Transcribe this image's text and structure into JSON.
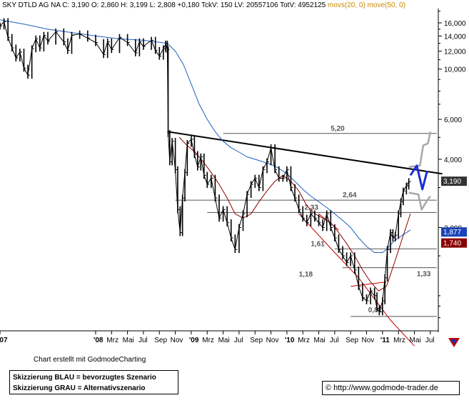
{
  "header": {
    "prefix": "SKY DTLD AG NA",
    "quote_parts": [
      {
        "label": "C:",
        "value": "3,190"
      },
      {
        "label": "O:",
        "value": "2,860"
      },
      {
        "label": "H:",
        "value": "3,199"
      },
      {
        "label": "L:",
        "value": "2,808"
      },
      {
        "label": "",
        "value": "+0,180"
      },
      {
        "label": "TckV:",
        "value": "150"
      },
      {
        "label": "LV:",
        "value": "20557106"
      },
      {
        "label": "TotV:",
        "value": "4952125"
      }
    ],
    "ma_labels": [
      "movs(20, 0)",
      "move(50, 0)"
    ]
  },
  "colors": {
    "ma_short": "#8b0000",
    "ma_long": "#1e5fbf",
    "scenario_blue": "#1a2fd6",
    "scenario_grey": "#a8a8a8",
    "price_badge": "#333333",
    "badge_blue": "#1a43b8",
    "badge_red": "#8b0000",
    "header_orange": "#cc8800"
  },
  "chart_data": {
    "type": "line",
    "y_scale": "log",
    "ylim": [
      0.7,
      18.5
    ],
    "y_ticks": [
      {
        "value": 16,
        "label": "16,000"
      },
      {
        "value": 14,
        "label": "14,000"
      },
      {
        "value": 12,
        "label": "12,000"
      },
      {
        "value": 10,
        "label": "10,000"
      },
      {
        "value": 6,
        "label": "6,000"
      },
      {
        "value": 4,
        "label": "4,000"
      },
      {
        "value": 2,
        "label": "2,000"
      }
    ],
    "x_ticks": [
      "'07",
      "'08",
      "Mrz",
      "Mai",
      "Jul",
      "Sep",
      "Nov",
      "'09",
      "Mrz",
      "Mai",
      "Jul",
      "Sep",
      "Nov",
      "'10",
      "Mrz",
      "Mai",
      "Jul",
      "Sep",
      "Nov",
      "'11",
      "Mrz",
      "Mai",
      "Jul"
    ],
    "x_tick_months": [
      0,
      12,
      14,
      16,
      18,
      20,
      22,
      24,
      26,
      28,
      30,
      32,
      34,
      36,
      38,
      40,
      42,
      44,
      46,
      48,
      50,
      52,
      54
    ],
    "x_range_months": [
      0,
      55
    ],
    "price": [
      [
        0,
        15.5
      ],
      [
        0.5,
        16.2
      ],
      [
        1,
        13.8
      ],
      [
        1.5,
        12.4
      ],
      [
        2,
        11.2
      ],
      [
        2.5,
        11.9
      ],
      [
        3,
        10.1
      ],
      [
        3.5,
        9.4
      ],
      [
        4,
        12.3
      ],
      [
        4.5,
        13.6
      ],
      [
        5,
        12.4
      ],
      [
        5.5,
        14.1
      ],
      [
        6,
        13.3
      ],
      [
        7,
        14.6
      ],
      [
        8,
        13.2
      ],
      [
        8.5,
        12.1
      ],
      [
        9,
        14.1
      ],
      [
        10,
        14.3
      ],
      [
        11,
        13.7
      ],
      [
        12,
        13.1
      ],
      [
        13,
        11.6
      ],
      [
        13.5,
        13.2
      ],
      [
        14,
        12.2
      ],
      [
        15,
        13.8
      ],
      [
        16,
        13.1
      ],
      [
        17,
        11.8
      ],
      [
        17.5,
        13.2
      ],
      [
        18,
        12.6
      ],
      [
        19,
        13.4
      ],
      [
        19.5,
        12.1
      ],
      [
        20,
        11.4
      ],
      [
        20.5,
        12.3
      ],
      [
        20.8,
        12.9
      ],
      [
        21,
        12.2
      ],
      [
        21.1,
        5.2
      ],
      [
        21.3,
        3.9
      ],
      [
        21.6,
        4.8
      ],
      [
        22,
        3.6
      ],
      [
        22.3,
        2.4
      ],
      [
        22.6,
        1.9
      ],
      [
        22.9,
        2.7
      ],
      [
        23.2,
        3.5
      ],
      [
        23.5,
        4.7
      ],
      [
        24,
        4.9
      ],
      [
        24.4,
        4.2
      ],
      [
        24.8,
        3.7
      ],
      [
        25.2,
        4.1
      ],
      [
        25.6,
        3.4
      ],
      [
        26,
        3.1
      ],
      [
        26.5,
        3.3
      ],
      [
        27,
        2.7
      ],
      [
        27.5,
        2.2
      ],
      [
        28,
        2.4
      ],
      [
        28.5,
        2.1
      ],
      [
        29,
        1.8
      ],
      [
        29.5,
        1.6
      ],
      [
        30,
        2.0
      ],
      [
        30.5,
        2.3
      ],
      [
        31,
        2.8
      ],
      [
        31.5,
        3.1
      ],
      [
        32,
        3.3
      ],
      [
        32.5,
        3.0
      ],
      [
        33,
        3.6
      ],
      [
        33.5,
        3.9
      ],
      [
        34,
        4.5
      ],
      [
        34.5,
        3.6
      ],
      [
        35,
        3.3
      ],
      [
        35.5,
        3.3
      ],
      [
        36,
        3.6
      ],
      [
        36.5,
        3.0
      ],
      [
        37,
        2.7
      ],
      [
        37.5,
        2.4
      ],
      [
        38,
        2.2
      ],
      [
        38.5,
        2.1
      ],
      [
        39,
        2.3
      ],
      [
        39.5,
        2.2
      ],
      [
        40,
        2.1
      ],
      [
        40.5,
        2.0
      ],
      [
        41,
        2.3
      ],
      [
        41.5,
        2.0
      ],
      [
        42,
        1.8
      ],
      [
        42.5,
        1.6
      ],
      [
        43,
        1.5
      ],
      [
        43.5,
        1.4
      ],
      [
        44,
        1.5
      ],
      [
        44.5,
        1.3
      ],
      [
        45,
        1.1
      ],
      [
        45.5,
        0.98
      ],
      [
        46,
        0.95
      ],
      [
        46.5,
        1.05
      ],
      [
        47,
        1.0
      ],
      [
        47.3,
        0.88
      ],
      [
        47.6,
        0.85
      ],
      [
        48,
        0.95
      ],
      [
        48.3,
        1.2
      ],
      [
        48.6,
        1.6
      ],
      [
        49,
        1.9
      ],
      [
        49.3,
        1.8
      ],
      [
        49.6,
        1.85
      ],
      [
        50,
        2.3
      ],
      [
        50.3,
        2.6
      ],
      [
        50.6,
        2.9
      ],
      [
        51,
        3.05
      ],
      [
        51.3,
        3.19
      ]
    ],
    "ma20": [
      [
        22.5,
        5.0
      ],
      [
        23.5,
        4.6
      ],
      [
        24.5,
        4.3
      ],
      [
        25.5,
        3.9
      ],
      [
        26.5,
        3.5
      ],
      [
        27.5,
        3.1
      ],
      [
        28.5,
        2.7
      ],
      [
        29.5,
        2.3
      ],
      [
        30.5,
        2.2
      ],
      [
        31.5,
        2.3
      ],
      [
        32.5,
        2.6
      ],
      [
        33.5,
        2.9
      ],
      [
        34.5,
        3.2
      ],
      [
        35.5,
        3.4
      ],
      [
        36.5,
        3.2
      ],
      [
        37.5,
        2.9
      ],
      [
        38.5,
        2.5
      ],
      [
        39.5,
        2.3
      ],
      [
        40.5,
        2.2
      ],
      [
        41.5,
        2.1
      ],
      [
        42.5,
        1.9
      ],
      [
        43.5,
        1.7
      ],
      [
        44.5,
        1.5
      ],
      [
        45.5,
        1.3
      ],
      [
        46.5,
        1.15
      ],
      [
        47.5,
        1.05
      ],
      [
        48.5,
        1.1
      ],
      [
        49.5,
        1.4
      ],
      [
        50.5,
        1.8
      ],
      [
        51.5,
        2.3
      ]
    ],
    "ma50": [
      [
        0,
        16.5
      ],
      [
        3,
        15.8
      ],
      [
        6,
        15.0
      ],
      [
        9,
        14.5
      ],
      [
        12,
        14.0
      ],
      [
        15,
        13.6
      ],
      [
        18,
        13.4
      ],
      [
        21,
        13.0
      ],
      [
        22,
        12.0
      ],
      [
        23,
        10.5
      ],
      [
        24,
        8.6
      ],
      [
        25,
        7.0
      ],
      [
        26,
        6.0
      ],
      [
        27,
        5.3
      ],
      [
        28,
        4.8
      ],
      [
        29,
        4.5
      ],
      [
        30,
        4.3
      ],
      [
        31,
        4.1
      ],
      [
        32,
        4.0
      ],
      [
        33,
        3.9
      ],
      [
        34,
        3.8
      ],
      [
        35,
        3.65
      ],
      [
        36,
        3.45
      ],
      [
        37,
        3.2
      ],
      [
        38,
        2.95
      ],
      [
        39,
        2.75
      ],
      [
        40,
        2.6
      ],
      [
        41,
        2.45
      ],
      [
        42,
        2.3
      ],
      [
        43,
        2.15
      ],
      [
        44,
        2.0
      ],
      [
        45,
        1.8
      ],
      [
        46,
        1.65
      ],
      [
        47,
        1.55
      ],
      [
        48,
        1.55
      ],
      [
        48.5,
        1.6
      ],
      [
        49.5,
        1.75
      ],
      [
        50.5,
        1.85
      ],
      [
        51.5,
        1.95
      ]
    ],
    "resistance_line": [
      [
        21,
        5.3
      ],
      [
        55.5,
        3.45
      ]
    ],
    "support_levels": [
      {
        "value": 5.2,
        "label": "5,20",
        "label_month": 41.5,
        "from_month": 28
      },
      {
        "value": 2.64,
        "label": "2,64",
        "label_month": 43.0,
        "from_month": 22
      },
      {
        "value": 2.33,
        "label": "2,33",
        "label_month": 38.2,
        "from_month": 26
      },
      {
        "value": 1.61,
        "label": "1,61",
        "label_month": 39.0,
        "from_month": 42
      },
      {
        "value": 1.33,
        "label": "1,33",
        "label_month": 52.3,
        "from_month": 43
      },
      {
        "value": 1.18,
        "label": "1,18",
        "label_month": 37.5,
        "from_month": 0,
        "no_line": true
      },
      {
        "value": 0.81,
        "label": "0,81",
        "label_month": 46.2,
        "from_month": 44
      }
    ],
    "price_badges": [
      {
        "value": 3.19,
        "label": "3,190",
        "kind": "price"
      },
      {
        "value": 1.877,
        "label": "1,877",
        "kind": "blue"
      },
      {
        "value": 1.74,
        "label": "1,740",
        "kind": "red"
      }
    ],
    "scenario_blue": [
      [
        51.5,
        3.4
      ],
      [
        52.3,
        3.75
      ],
      [
        53.0,
        2.95
      ],
      [
        53.6,
        3.55
      ]
    ],
    "scenario_grey_up": [
      [
        51.3,
        3.7
      ],
      [
        52.7,
        3.75
      ],
      [
        53.1,
        4.6
      ],
      [
        53.7,
        4.7
      ],
      [
        54.0,
        5.3
      ]
    ],
    "scenario_grey_down": [
      [
        51.3,
        2.85
      ],
      [
        52.5,
        2.8
      ],
      [
        52.9,
        2.4
      ],
      [
        53.5,
        2.6
      ],
      [
        54.0,
        2.75
      ]
    ],
    "trendline_red": [
      [
        40,
        2.3
      ],
      [
        42.5,
        1.95
      ]
    ],
    "trendline_red2": [
      [
        44,
        1.1
      ],
      [
        48.5,
        1.15
      ]
    ],
    "trendline_down": [
      [
        37.5,
        2.3
      ],
      [
        42,
        1.55
      ],
      [
        45,
        1.2
      ],
      [
        49,
        0.78
      ],
      [
        52,
        0.6
      ]
    ]
  },
  "footer": {
    "credit": "Chart erstellt mit GodmodeCharting",
    "legend": [
      "Skizzierung BLAU = bevorzugtes Szenario",
      "Skizzierung GRAU = Alternativszenario"
    ],
    "copyright_symbol": "©",
    "url": "http://www.godmode-trader.de"
  }
}
